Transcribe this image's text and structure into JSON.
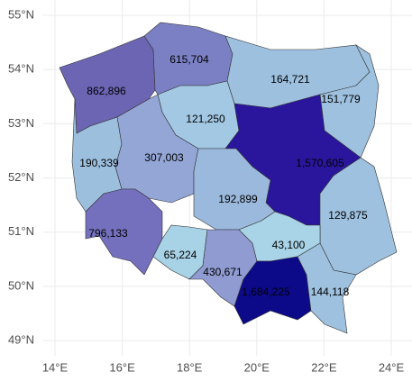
{
  "chart_data": {
    "type": "choropleth",
    "values": [
      862896,
      615704,
      164721,
      151779,
      121250,
      1570605,
      190339,
      307003,
      192899,
      129875,
      796133,
      65224,
      430671,
      43100,
      1684225,
      144118
    ],
    "value_labels": [
      "862,896",
      "615,704",
      "164,721",
      "151,779",
      "121,250",
      "1,570,605",
      "190,339",
      "307,003",
      "192,899",
      "129,875",
      "796,133",
      "65,224",
      "430,671",
      "43,100",
      "1,684,225",
      "144,118"
    ],
    "colors": [
      "#6b65b3",
      "#7b80c4",
      "#9dc0de",
      "#9ec1df",
      "#a3c8e3",
      "#2a169c",
      "#9dbfde",
      "#93a6d6",
      "#9bb9dc",
      "#9ec1df",
      "#7470bd",
      "#a8d2e6",
      "#8f9bd1",
      "#a9d3e7",
      "#0d0a8a",
      "#9ec1df"
    ],
    "xticks": [
      {
        "value": 14,
        "label": "14°E"
      },
      {
        "value": 16,
        "label": "16°E"
      },
      {
        "value": 18,
        "label": "18°E"
      },
      {
        "value": 20,
        "label": "20°E"
      },
      {
        "value": 22,
        "label": "22°E"
      },
      {
        "value": 24,
        "label": "24°E"
      }
    ],
    "yticks": [
      {
        "value": 55,
        "label": "55°N"
      },
      {
        "value": 54,
        "label": "54°N"
      },
      {
        "value": 53,
        "label": "53°N"
      },
      {
        "value": 52,
        "label": "52°N"
      },
      {
        "value": 51,
        "label": "51°N"
      },
      {
        "value": 50,
        "label": "50°N"
      },
      {
        "value": 49,
        "label": "49°N"
      }
    ],
    "grid": true
  }
}
